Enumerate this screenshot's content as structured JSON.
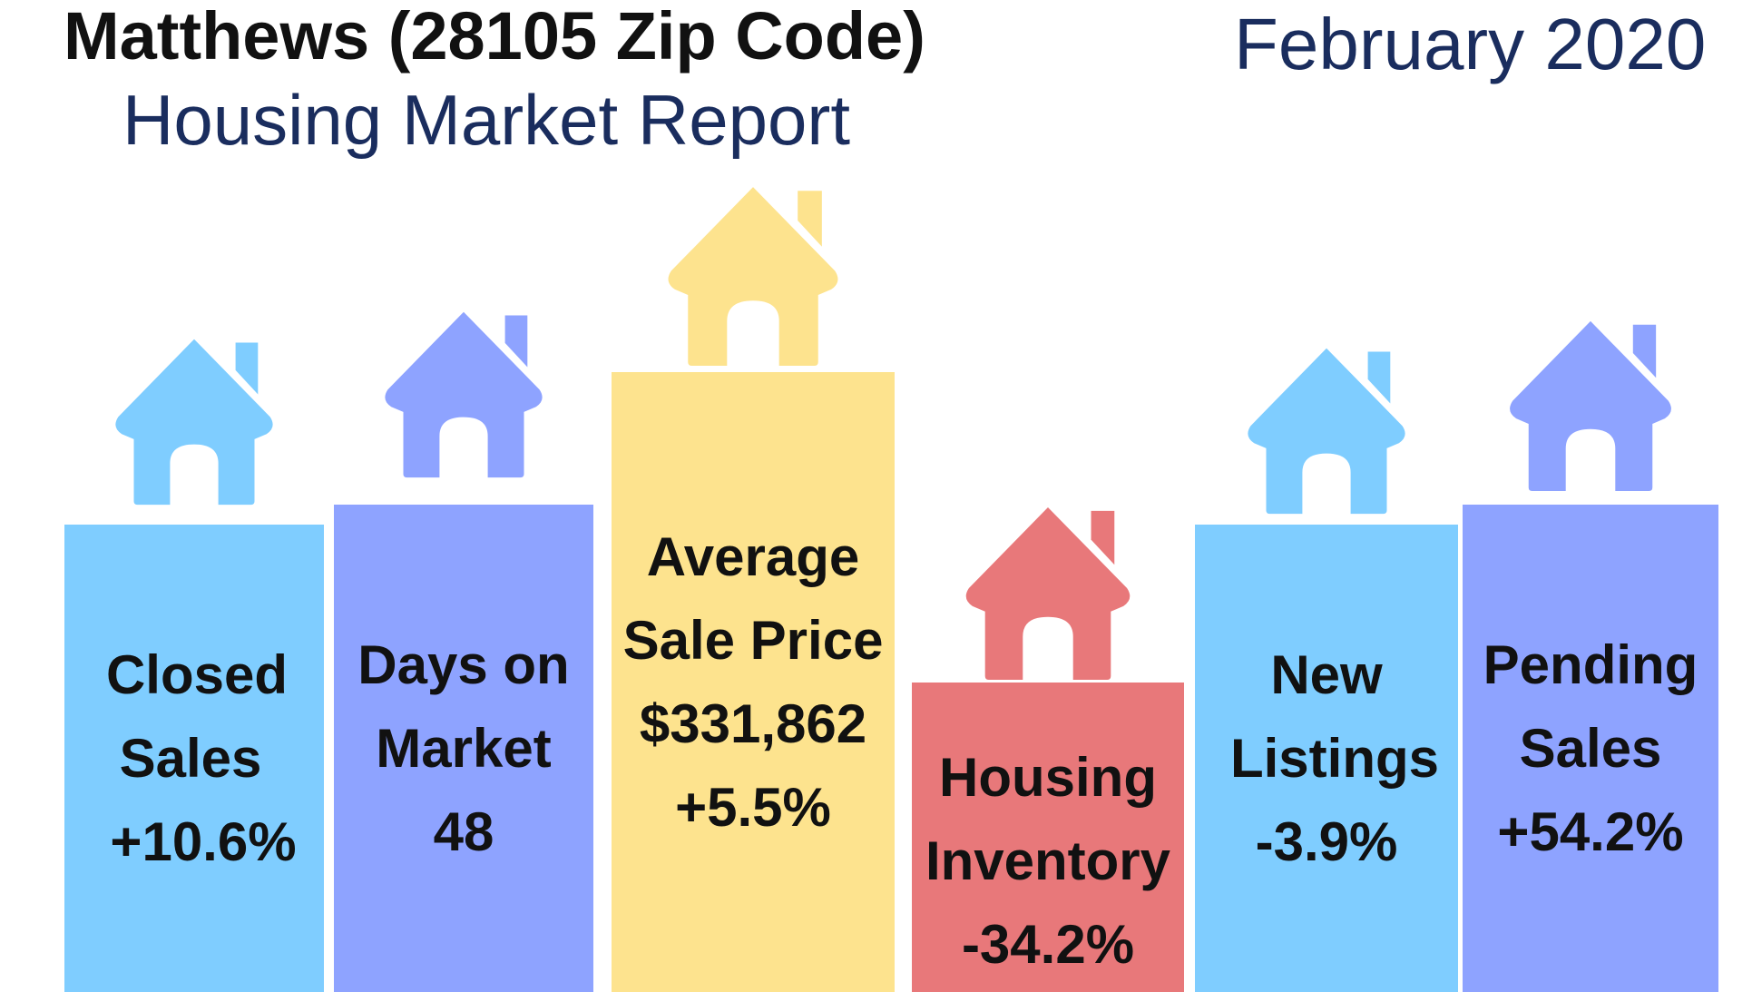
{
  "header": {
    "title": "Matthews (28105 Zip Code)",
    "subtitle": "Housing Market Report",
    "date": "February 2020"
  },
  "stats": [
    {
      "line1": "Closed",
      "line2": "Sales",
      "value": "+10.6%",
      "color": "#7fcdff",
      "icon": "house-icon"
    },
    {
      "line1": "Days on",
      "line2": "Market",
      "value": "48",
      "color": "#8ea3ff",
      "icon": "house-icon"
    },
    {
      "line1": "Average",
      "line2": "Sale Price",
      "value_main": "$331,862",
      "value": "+5.5%",
      "color": "#fde38e",
      "icon": "house-icon"
    },
    {
      "line1": "Housing",
      "line2": "Inventory",
      "value": "-34.2%",
      "color": "#e8787a",
      "icon": "house-icon"
    },
    {
      "line1": "New",
      "line2": "Listings",
      "value": "-3.9%",
      "color": "#7fcdff",
      "icon": "house-icon"
    },
    {
      "line1": "Pending",
      "line2": "Sales",
      "value": "+54.2%",
      "color": "#8ea3ff",
      "icon": "house-icon"
    }
  ]
}
